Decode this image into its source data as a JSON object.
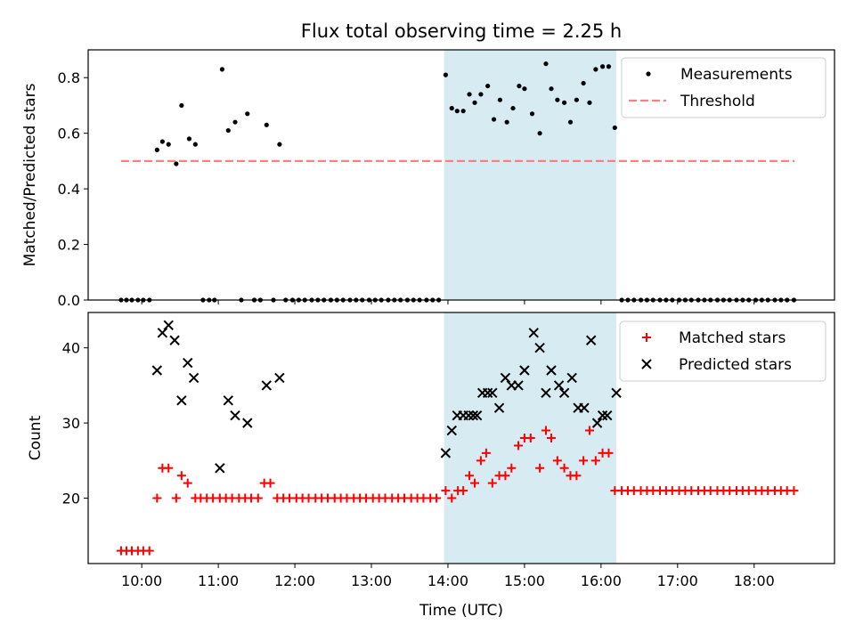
{
  "title": "Flux total observing time = 2.25 h",
  "colors": {
    "shade": "#add8e6",
    "threshold": "#ff7f7f",
    "measurement": "#000000",
    "matched": "#ff0000",
    "predicted": "#000000"
  },
  "chart_data": [
    {
      "type": "scatter",
      "panel": "top",
      "ylabel": "Matched/Predicted stars",
      "xlim": [
        9.3,
        19.05
      ],
      "ylim": [
        0,
        0.9
      ],
      "yticks": [
        0.0,
        0.2,
        0.4,
        0.6,
        0.8
      ],
      "ytick_labels": [
        "0.0",
        "0.2",
        "0.4",
        "0.6",
        "0.8"
      ],
      "shaded_span": [
        13.95,
        16.2
      ],
      "threshold": {
        "name": "Threshold",
        "y": 0.5,
        "x": [
          9.73,
          18.53
        ]
      },
      "legend": {
        "position": "upper right",
        "entries": [
          {
            "label": "Measurements",
            "marker": "dot"
          },
          {
            "label": "Threshold",
            "marker": "dashed"
          }
        ]
      },
      "series": [
        {
          "name": "Measurements",
          "points": [
            [
              9.73,
              0
            ],
            [
              9.8,
              0
            ],
            [
              9.87,
              0
            ],
            [
              9.95,
              0
            ],
            [
              10.02,
              0
            ],
            [
              10.1,
              0
            ],
            [
              10.2,
              0.54
            ],
            [
              10.27,
              0.57
            ],
            [
              10.35,
              0.56
            ],
            [
              10.45,
              0.49
            ],
            [
              10.52,
              0.7
            ],
            [
              10.62,
              0.58
            ],
            [
              10.7,
              0.56
            ],
            [
              10.8,
              0
            ],
            [
              10.88,
              0
            ],
            [
              10.95,
              0
            ],
            [
              11.05,
              0.83
            ],
            [
              11.13,
              0.61
            ],
            [
              11.22,
              0.64
            ],
            [
              11.3,
              0
            ],
            [
              11.38,
              0.67
            ],
            [
              11.47,
              0
            ],
            [
              11.55,
              0
            ],
            [
              11.63,
              0.63
            ],
            [
              11.72,
              0
            ],
            [
              11.8,
              0.56
            ],
            [
              11.88,
              0
            ],
            [
              11.97,
              0
            ],
            [
              12.05,
              0
            ],
            [
              12.13,
              0
            ],
            [
              12.22,
              0
            ],
            [
              12.3,
              0
            ],
            [
              12.38,
              0
            ],
            [
              12.47,
              0
            ],
            [
              12.55,
              0
            ],
            [
              12.63,
              0
            ],
            [
              12.72,
              0
            ],
            [
              12.8,
              0
            ],
            [
              12.88,
              0
            ],
            [
              12.97,
              0
            ],
            [
              13.05,
              0
            ],
            [
              13.13,
              0
            ],
            [
              13.22,
              0
            ],
            [
              13.3,
              0
            ],
            [
              13.38,
              0
            ],
            [
              13.47,
              0
            ],
            [
              13.55,
              0
            ],
            [
              13.63,
              0
            ],
            [
              13.72,
              0
            ],
            [
              13.8,
              0
            ],
            [
              13.88,
              0
            ],
            [
              13.97,
              0.81
            ],
            [
              14.05,
              0.69
            ],
            [
              14.12,
              0.68
            ],
            [
              14.2,
              0.68
            ],
            [
              14.28,
              0.74
            ],
            [
              14.35,
              0.71
            ],
            [
              14.43,
              0.74
            ],
            [
              14.52,
              0.77
            ],
            [
              14.6,
              0.65
            ],
            [
              14.68,
              0.72
            ],
            [
              14.77,
              0.64
            ],
            [
              14.85,
              0.69
            ],
            [
              14.93,
              0.77
            ],
            [
              15.0,
              0.76
            ],
            [
              15.1,
              0.67
            ],
            [
              15.2,
              0.6
            ],
            [
              15.28,
              0.85
            ],
            [
              15.35,
              0.76
            ],
            [
              15.43,
              0.72
            ],
            [
              15.52,
              0.71
            ],
            [
              15.6,
              0.64
            ],
            [
              15.68,
              0.72
            ],
            [
              15.77,
              0.78
            ],
            [
              15.85,
              0.71
            ],
            [
              15.93,
              0.83
            ],
            [
              16.02,
              0.84
            ],
            [
              16.1,
              0.84
            ],
            [
              16.18,
              0.62
            ],
            [
              16.27,
              0
            ],
            [
              16.35,
              0
            ],
            [
              16.43,
              0
            ],
            [
              16.52,
              0
            ],
            [
              16.6,
              0
            ],
            [
              16.68,
              0
            ],
            [
              16.77,
              0
            ],
            [
              16.85,
              0
            ],
            [
              16.93,
              0
            ],
            [
              17.02,
              0
            ],
            [
              17.1,
              0
            ],
            [
              17.18,
              0
            ],
            [
              17.27,
              0
            ],
            [
              17.35,
              0
            ],
            [
              17.43,
              0
            ],
            [
              17.52,
              0
            ],
            [
              17.6,
              0
            ],
            [
              17.68,
              0
            ],
            [
              17.77,
              0
            ],
            [
              17.85,
              0
            ],
            [
              17.93,
              0
            ],
            [
              18.02,
              0
            ],
            [
              18.1,
              0
            ],
            [
              18.18,
              0
            ],
            [
              18.27,
              0
            ],
            [
              18.35,
              0
            ],
            [
              18.43,
              0
            ],
            [
              18.52,
              0
            ]
          ]
        }
      ]
    },
    {
      "type": "scatter",
      "panel": "bottom",
      "ylabel": "Count",
      "xlabel": "Time (UTC)",
      "xlim": [
        9.3,
        19.05
      ],
      "ylim": [
        11.3,
        44.7
      ],
      "yticks": [
        20,
        30,
        40
      ],
      "ytick_labels": [
        "20",
        "30",
        "40"
      ],
      "xticks": [
        10,
        11,
        12,
        13,
        14,
        15,
        16,
        17,
        18
      ],
      "xtick_labels": [
        "10:00",
        "11:00",
        "12:00",
        "13:00",
        "14:00",
        "15:00",
        "16:00",
        "17:00",
        "18:00"
      ],
      "shaded_span": [
        13.95,
        16.2
      ],
      "legend": {
        "position": "upper right",
        "entries": [
          {
            "label": "Matched stars",
            "marker": "plus"
          },
          {
            "label": "Predicted stars",
            "marker": "x"
          }
        ]
      },
      "series": [
        {
          "name": "Matched stars",
          "points": [
            [
              9.73,
              13
            ],
            [
              9.8,
              13
            ],
            [
              9.87,
              13
            ],
            [
              9.95,
              13
            ],
            [
              10.02,
              13
            ],
            [
              10.1,
              13
            ],
            [
              10.2,
              20
            ],
            [
              10.27,
              24
            ],
            [
              10.35,
              24
            ],
            [
              10.45,
              20
            ],
            [
              10.52,
              23
            ],
            [
              10.6,
              22
            ],
            [
              10.7,
              20
            ],
            [
              10.77,
              20
            ],
            [
              10.85,
              20
            ],
            [
              10.93,
              20
            ],
            [
              11.02,
              20
            ],
            [
              11.1,
              20
            ],
            [
              11.18,
              20
            ],
            [
              11.27,
              20
            ],
            [
              11.35,
              20
            ],
            [
              11.43,
              20
            ],
            [
              11.52,
              20
            ],
            [
              11.6,
              22
            ],
            [
              11.68,
              22
            ],
            [
              11.77,
              20
            ],
            [
              11.85,
              20
            ],
            [
              11.93,
              20
            ],
            [
              12.02,
              20
            ],
            [
              12.1,
              20
            ],
            [
              12.18,
              20
            ],
            [
              12.27,
              20
            ],
            [
              12.35,
              20
            ],
            [
              12.43,
              20
            ],
            [
              12.52,
              20
            ],
            [
              12.6,
              20
            ],
            [
              12.68,
              20
            ],
            [
              12.77,
              20
            ],
            [
              12.85,
              20
            ],
            [
              12.93,
              20
            ],
            [
              13.02,
              20
            ],
            [
              13.1,
              20
            ],
            [
              13.18,
              20
            ],
            [
              13.27,
              20
            ],
            [
              13.35,
              20
            ],
            [
              13.43,
              20
            ],
            [
              13.52,
              20
            ],
            [
              13.6,
              20
            ],
            [
              13.68,
              20
            ],
            [
              13.77,
              20
            ],
            [
              13.85,
              20
            ],
            [
              13.97,
              21
            ],
            [
              14.05,
              20
            ],
            [
              14.13,
              21
            ],
            [
              14.2,
              21
            ],
            [
              14.28,
              23
            ],
            [
              14.35,
              22
            ],
            [
              14.43,
              25
            ],
            [
              14.5,
              26
            ],
            [
              14.58,
              22
            ],
            [
              14.67,
              23
            ],
            [
              14.75,
              23
            ],
            [
              14.83,
              24
            ],
            [
              14.92,
              27
            ],
            [
              15.0,
              28
            ],
            [
              15.08,
              28
            ],
            [
              15.2,
              24
            ],
            [
              15.28,
              29
            ],
            [
              15.35,
              28
            ],
            [
              15.43,
              25
            ],
            [
              15.52,
              24
            ],
            [
              15.6,
              23
            ],
            [
              15.68,
              23
            ],
            [
              15.77,
              25
            ],
            [
              15.85,
              29
            ],
            [
              15.93,
              25
            ],
            [
              16.02,
              26
            ],
            [
              16.1,
              26
            ],
            [
              16.18,
              21
            ],
            [
              16.27,
              21
            ],
            [
              16.35,
              21
            ],
            [
              16.43,
              21
            ],
            [
              16.52,
              21
            ],
            [
              16.6,
              21
            ],
            [
              16.68,
              21
            ],
            [
              16.77,
              21
            ],
            [
              16.85,
              21
            ],
            [
              16.93,
              21
            ],
            [
              17.02,
              21
            ],
            [
              17.1,
              21
            ],
            [
              17.18,
              21
            ],
            [
              17.27,
              21
            ],
            [
              17.35,
              21
            ],
            [
              17.43,
              21
            ],
            [
              17.52,
              21
            ],
            [
              17.6,
              21
            ],
            [
              17.68,
              21
            ],
            [
              17.77,
              21
            ],
            [
              17.85,
              21
            ],
            [
              17.93,
              21
            ],
            [
              18.02,
              21
            ],
            [
              18.1,
              21
            ],
            [
              18.18,
              21
            ],
            [
              18.27,
              21
            ],
            [
              18.35,
              21
            ],
            [
              18.43,
              21
            ],
            [
              18.52,
              21
            ]
          ]
        },
        {
          "name": "Predicted stars",
          "points": [
            [
              10.2,
              37
            ],
            [
              10.27,
              42
            ],
            [
              10.35,
              43
            ],
            [
              10.43,
              41
            ],
            [
              10.52,
              33
            ],
            [
              10.6,
              38
            ],
            [
              10.68,
              36
            ],
            [
              11.02,
              24
            ],
            [
              11.13,
              33
            ],
            [
              11.22,
              31
            ],
            [
              11.38,
              30
            ],
            [
              11.63,
              35
            ],
            [
              11.8,
              36
            ],
            [
              13.97,
              26
            ],
            [
              14.05,
              29
            ],
            [
              14.12,
              31
            ],
            [
              14.2,
              31
            ],
            [
              14.27,
              31
            ],
            [
              14.33,
              31
            ],
            [
              14.38,
              31
            ],
            [
              14.45,
              34
            ],
            [
              14.52,
              34
            ],
            [
              14.58,
              34
            ],
            [
              14.67,
              32
            ],
            [
              14.75,
              36
            ],
            [
              14.83,
              35
            ],
            [
              14.92,
              35
            ],
            [
              15.0,
              37
            ],
            [
              15.12,
              42
            ],
            [
              15.2,
              40
            ],
            [
              15.28,
              34
            ],
            [
              15.35,
              37
            ],
            [
              15.45,
              35
            ],
            [
              15.52,
              34
            ],
            [
              15.62,
              36
            ],
            [
              15.7,
              32
            ],
            [
              15.78,
              32
            ],
            [
              15.87,
              41
            ],
            [
              15.95,
              30
            ],
            [
              16.02,
              31
            ],
            [
              16.08,
              31
            ],
            [
              16.2,
              34
            ]
          ]
        }
      ]
    }
  ]
}
